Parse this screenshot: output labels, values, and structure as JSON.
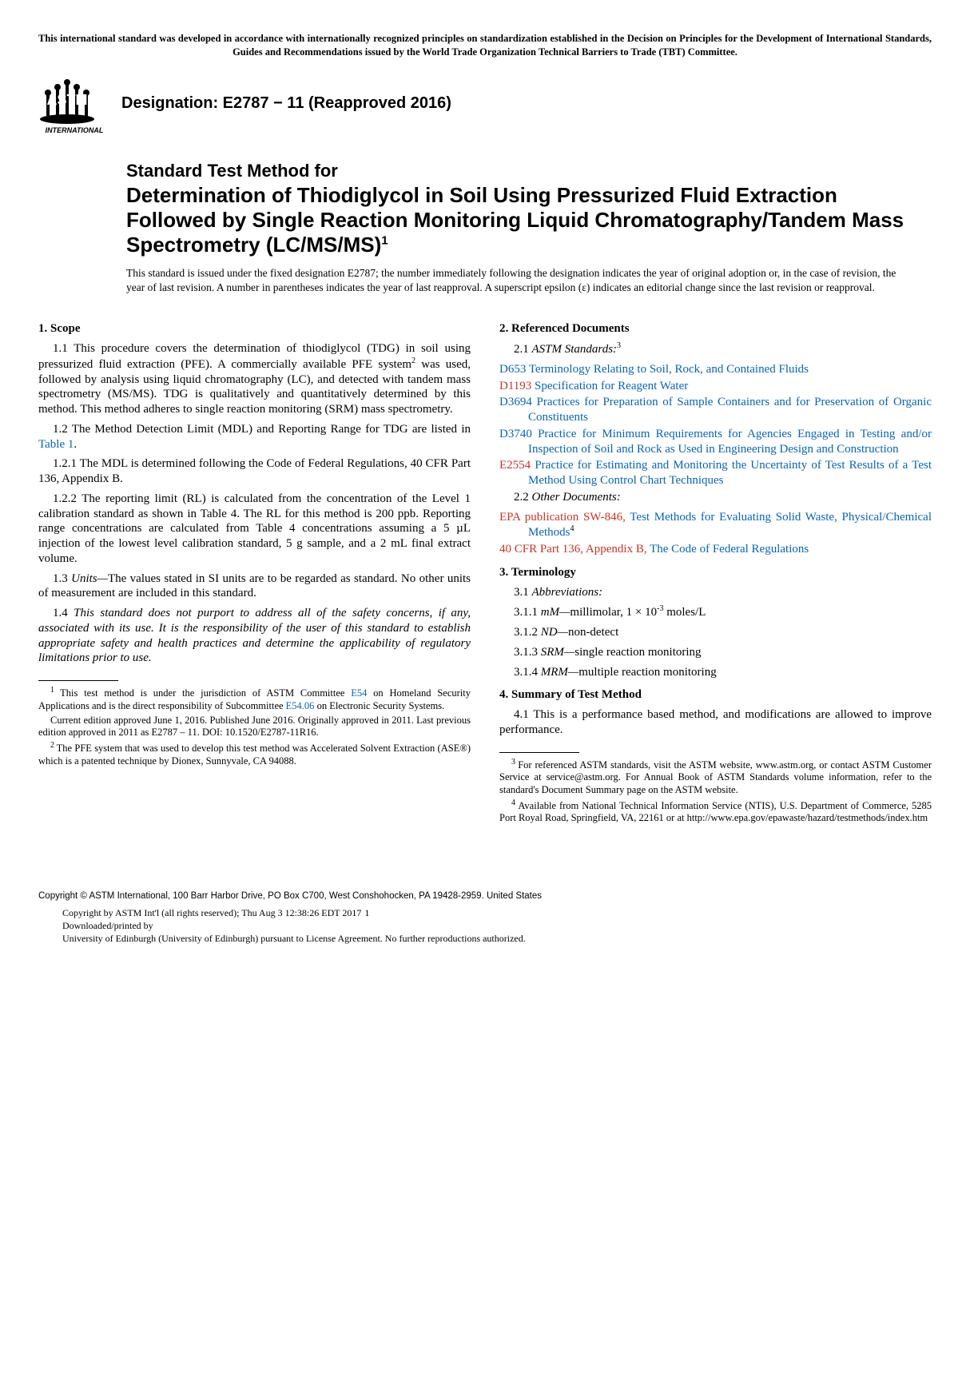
{
  "top_notice": "This international standard was developed in accordance with internationally recognized principles on standardization established in the Decision on Principles for the Development of International Standards, Guides and Recommendations issued by the World Trade Organization Technical Barriers to Trade (TBT) Committee.",
  "logo": {
    "text": "ASTM",
    "sub": "INTERNATIONAL"
  },
  "designation": "Designation: E2787 − 11 (Reapproved 2016)",
  "title": {
    "line1": "Standard Test Method for",
    "main": "Determination of Thiodiglycol in Soil Using Pressurized Fluid Extraction Followed by Single Reaction Monitoring Liquid Chromatography/Tandem Mass Spectrometry (LC/MS/MS)",
    "super": "1"
  },
  "issuance": "This standard is issued under the fixed designation E2787; the number immediately following the designation indicates the year of original adoption or, in the case of revision, the year of last revision. A number in parentheses indicates the year of last reapproval. A superscript epsilon (ε) indicates an editorial change since the last revision or reapproval.",
  "left": {
    "scope_head": "1.  Scope",
    "p1_1": "1.1 This procedure covers the determination of thiodiglycol (TDG) in soil using pressurized fluid extraction (PFE). A commercially available PFE system",
    "p1_1_sup": "2",
    "p1_1b": " was used, followed by analysis using liquid chromatography (LC), and detected with tandem mass spectrometry (MS/MS). TDG is qualitatively and quantitatively determined by this method. This method adheres to single reaction monitoring (SRM) mass spectrometry.",
    "p1_2a": "1.2 The Method Detection Limit (MDL) and Reporting Range for TDG are listed in ",
    "p1_2_link": "Table 1",
    "p1_2b": ".",
    "p1_2_1": "1.2.1 The MDL is determined following the Code of Federal Regulations, 40 CFR Part 136, Appendix B.",
    "p1_2_2": "1.2.2 The reporting limit (RL) is calculated from the concentration of the Level 1 calibration standard as shown in Table 4. The RL for this method is 200 ppb. Reporting range concentrations are calculated from Table 4 concentrations assuming a 5 µL injection of the lowest level calibration standard, 5 g sample, and a 2 mL final extract volume.",
    "p1_3_lead": "1.3 ",
    "p1_3_ital": "Units—",
    "p1_3_rest": "The values stated in SI units are to be regarded as standard. No other units of measurement are included in this standard.",
    "p1_4_lead": "1.4 ",
    "p1_4_ital": "This standard does not purport to address all of the safety concerns, if any, associated with its use. It is the responsibility of the user of this standard to establish appropriate safety and health practices and determine the applicability of regulatory limitations prior to use.",
    "fn1_sup": "1 ",
    "fn1a": "This test method is under the jurisdiction of ASTM Committee ",
    "fn1_link1": "E54",
    "fn1b": " on Homeland Security Applications and is the direct responsibility of Subcommittee ",
    "fn1_link2": "E54.06",
    "fn1c": " on Electronic Security Systems.",
    "fn1_para2": "Current edition approved June 1, 2016. Published June 2016. Originally approved in 2011. Last previous edition approved in 2011 as E2787 – 11. DOI: 10.1520/E2787-11R16.",
    "fn2_sup": "2 ",
    "fn2": "The PFE system that was used to develop this test method was Accelerated Solvent Extraction (ASE®) which is a patented technique by Dionex, Sunnyvale, CA 94088."
  },
  "right": {
    "refdocs_head": "2.  Referenced Documents",
    "p2_1_lead": "2.1 ",
    "p2_1_ital": "ASTM Standards:",
    "p2_1_sup": "3",
    "refs": [
      {
        "code": "D653",
        "text": "Terminology Relating to Soil, Rock, and Contained Fluids",
        "red": false
      },
      {
        "code": "D1193",
        "text": "Specification for Reagent Water",
        "red": true
      },
      {
        "code": "D3694",
        "text": "Practices for Preparation of Sample Containers and for Preservation of Organic Constituents",
        "red": false
      },
      {
        "code": "D3740",
        "text": "Practice for Minimum Requirements for Agencies Engaged in Testing and/or Inspection of Soil and Rock as Used in Engineering Design and Construction",
        "red": false
      },
      {
        "code": "E2554",
        "text": "Practice for Estimating and Monitoring the Uncertainty of Test Results of a Test Method Using Control Chart Techniques",
        "red": true
      }
    ],
    "p2_2_lead": "2.2 ",
    "p2_2_ital": "Other Documents:",
    "other1_code": "EPA publication SW-846,",
    "other1_text": "Test Methods for Evaluating Solid Waste, Physical/Chemical Methods",
    "other1_sup": "4",
    "other2_code": "40 CFR Part 136, Appendix B,",
    "other2_text": "The Code of Federal Regulations",
    "term_head": "3.  Terminology",
    "p3_1_lead": "3.1 ",
    "p3_1_ital": "Abbreviations:",
    "t3_1_1a": "3.1.1 ",
    "t3_1_1i": "mM—",
    "t3_1_1b": "millimolar, 1 × 10",
    "t3_1_1sup": "-3",
    "t3_1_1c": " moles/L",
    "t3_1_2a": "3.1.2 ",
    "t3_1_2i": "ND—",
    "t3_1_2b": "non-detect",
    "t3_1_3a": "3.1.3 ",
    "t3_1_3i": "SRM—",
    "t3_1_3b": "single reaction monitoring",
    "t3_1_4a": "3.1.4 ",
    "t3_1_4i": "MRM—",
    "t3_1_4b": "multiple reaction monitoring",
    "summary_head": "4.  Summary of Test Method",
    "p4_1": "4.1 This is a performance based method, and modifications are allowed to improve performance.",
    "fn3_sup": "3 ",
    "fn3": "For referenced ASTM standards, visit the ASTM website, www.astm.org, or contact ASTM Customer Service at service@astm.org. For Annual Book of ASTM Standards volume information, refer to the standard's Document Summary page on the ASTM website.",
    "fn4_sup": "4 ",
    "fn4": "Available from National Technical Information Service (NTIS), U.S. Department of Commerce, 5285 Port Royal Road, Springfield, VA, 22161 or at http://www.epa.gov/epawaste/hazard/testmethods/index.htm"
  },
  "footer": {
    "copyright": "Copyright © ASTM International, 100 Barr Harbor Drive, PO Box C700, West Conshohocken, PA 19428-2959. United States",
    "dl1": "Copyright by ASTM Int'l (all rights reserved); Thu Aug  3 12:38:26 EDT 2017",
    "pagenum": "1",
    "dl2": "Downloaded/printed by",
    "dl3": "University of Edinburgh (University of Edinburgh) pursuant to License Agreement. No further reproductions authorized."
  }
}
